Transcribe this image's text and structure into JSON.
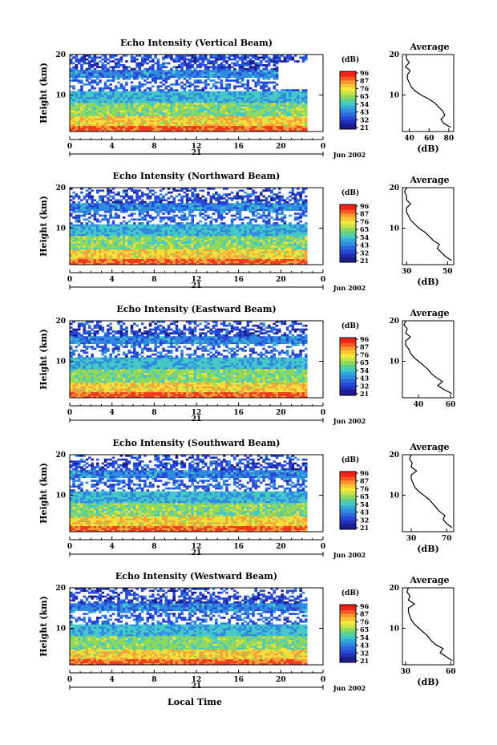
{
  "colorbar": {
    "unit": "(dB)",
    "levels": [
      "96",
      "87",
      "76",
      "65",
      "54",
      "43",
      "32",
      "21"
    ],
    "colors": [
      "#f23a1e",
      "#f8a23a",
      "#f5e03c",
      "#8fd85c",
      "#44c8c8",
      "#2f8ae0",
      "#2848d8",
      "#1b1e8c"
    ]
  },
  "x_axis_label": "Local Time",
  "time_ticks": [
    "0",
    "4",
    "8",
    "12",
    "16",
    "20",
    "0"
  ],
  "date_tick": "21",
  "date_label": "Jun 2002",
  "chart_data": [
    {
      "type": "heatmap",
      "title": "Echo Intensity (Vertical Beam)",
      "ylabel": "Height (km)",
      "yticks": [
        "20",
        "10"
      ],
      "xlim": [
        0,
        24
      ],
      "ylim": [
        1,
        20
      ],
      "average_profile": {
        "title": "Average",
        "xlabel": "(dB)",
        "xticks": [
          "40",
          "60",
          "80"
        ],
        "xlim": [
          33,
          85
        ],
        "height": [
          2,
          3,
          4,
          5,
          6,
          7,
          8,
          9,
          10,
          11,
          12,
          13,
          14,
          15,
          16,
          17,
          18,
          19,
          20
        ],
        "value": [
          82,
          75,
          72,
          76,
          74,
          70,
          66,
          60,
          52,
          46,
          42,
          40,
          38,
          38,
          41,
          36,
          40,
          37,
          37
        ]
      }
    },
    {
      "type": "heatmap",
      "title": "Echo Intensity (Northward Beam)",
      "ylabel": "Height (km)",
      "yticks": [
        "20",
        "10"
      ],
      "xlim": [
        0,
        24
      ],
      "ylim": [
        1,
        20
      ],
      "average_profile": {
        "title": "Average",
        "xlabel": "(dB)",
        "xticks": [
          "30",
          "50"
        ],
        "xlim": [
          28,
          53
        ],
        "height": [
          2,
          3,
          4,
          5,
          6,
          7,
          8,
          9,
          10,
          11,
          12,
          13,
          14,
          15,
          16,
          17,
          18,
          19,
          20
        ],
        "value": [
          52,
          49,
          47,
          45,
          46,
          43,
          41,
          39,
          36,
          34,
          32,
          31,
          30,
          30,
          32,
          30,
          30,
          29,
          30
        ]
      }
    },
    {
      "type": "heatmap",
      "title": "Echo Intensity (Eastward Beam)",
      "ylabel": "Height (km)",
      "yticks": [
        "20",
        "10"
      ],
      "xlim": [
        0,
        24
      ],
      "ylim": [
        1,
        20
      ],
      "average_profile": {
        "title": "Average",
        "xlabel": "",
        "xticks": [
          "40",
          "60"
        ],
        "xlim": [
          30,
          62
        ],
        "height": [
          2,
          3,
          4,
          5,
          6,
          7,
          8,
          9,
          10,
          11,
          12,
          13,
          14,
          15,
          16,
          17,
          18,
          19,
          20
        ],
        "value": [
          61,
          56,
          52,
          55,
          51,
          48,
          46,
          43,
          40,
          37,
          35,
          34,
          32,
          32,
          35,
          32,
          33,
          31,
          32
        ]
      }
    },
    {
      "type": "heatmap",
      "title": "Echo Intensity (Southward Beam)",
      "ylabel": "Height (km)",
      "yticks": [
        "20",
        "10"
      ],
      "xlim": [
        0,
        24
      ],
      "ylim": [
        1,
        20
      ],
      "average_profile": {
        "title": "Average",
        "xlabel": "(dB)",
        "xticks": [
          "30",
          "70"
        ],
        "xlim": [
          20,
          78
        ],
        "height": [
          2,
          3,
          4,
          5,
          6,
          7,
          8,
          9,
          10,
          11,
          12,
          13,
          14,
          15,
          16,
          17,
          18,
          19,
          20
        ],
        "value": [
          76,
          70,
          66,
          68,
          62,
          58,
          54,
          50,
          44,
          38,
          34,
          32,
          30,
          30,
          36,
          30,
          31,
          28,
          30
        ]
      }
    },
    {
      "type": "heatmap",
      "title": "Echo Intensity (Westward Beam)",
      "ylabel": "Height (km)",
      "yticks": [
        "20",
        "10"
      ],
      "xlim": [
        0,
        24
      ],
      "ylim": [
        1,
        20
      ],
      "average_profile": {
        "title": "Average",
        "xlabel": "(dB)",
        "xticks": [
          "30",
          "60"
        ],
        "xlim": [
          28,
          62
        ],
        "height": [
          2,
          3,
          4,
          5,
          6,
          7,
          8,
          9,
          10,
          11,
          12,
          13,
          14,
          15,
          16,
          17,
          18,
          19,
          20
        ],
        "value": [
          61,
          57,
          53,
          55,
          50,
          47,
          45,
          42,
          39,
          36,
          34,
          33,
          32,
          32,
          36,
          32,
          33,
          31,
          32
        ]
      }
    }
  ]
}
